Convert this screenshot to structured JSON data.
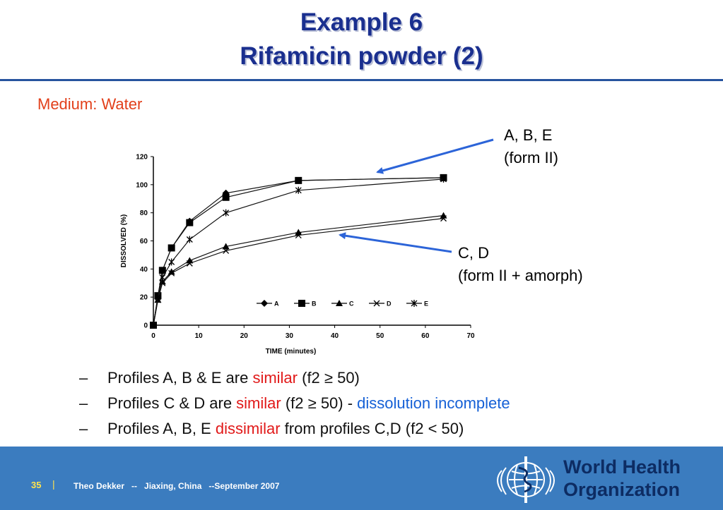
{
  "slide": {
    "title_line1": "Example 6",
    "title_line2": "Rifamicin powder (2)",
    "subtitle": "Medium: Water",
    "callouts": {
      "abe_line1": "A, B, E",
      "abe_line2": "(form II)",
      "cd_line1": "C, D",
      "cd_line2": "(form II + amorph)"
    },
    "bullets": [
      {
        "dash": "–",
        "t1": "Profiles A, B & E are ",
        "t2": "similar",
        "t3": " (f2 ≥ 50)"
      },
      {
        "dash": "–",
        "t1": "Profiles C & D are ",
        "t2": "similar",
        "t3": " (f2 ≥ 50) - ",
        "t4": "dissolution incomplete"
      },
      {
        "dash": "–",
        "t1": "Profiles A, B, E ",
        "t2": "dissimilar",
        "t3": " from profiles C,D (f2 < 50)"
      }
    ],
    "colors": {
      "title": "#1a2f8f",
      "subtitle": "#e2401b",
      "highlight_red": "#e11919",
      "highlight_blue": "#1560d6",
      "arrow": "#2c64d8",
      "footer_bg": "#3b7cbf"
    }
  },
  "footer": {
    "page_number": "35",
    "separator": "|",
    "presenter_text": "Theo Dekker   --   Jiaxing, China   --September 2007",
    "logo_icon": "who-emblem-icon",
    "logo_line1": "World Health",
    "logo_line2": "Organization"
  },
  "chart_data": {
    "type": "line",
    "xlabel": "TIME (minutes)",
    "ylabel": "DISSOLVED (%)",
    "xlim": [
      0,
      70
    ],
    "ylim": [
      0,
      120
    ],
    "xticks": [
      0,
      10,
      20,
      30,
      40,
      50,
      60,
      70
    ],
    "yticks": [
      0,
      20,
      40,
      60,
      80,
      100,
      120
    ],
    "grid": false,
    "legend_position": "bottom-right",
    "series": [
      {
        "name": "A",
        "marker": "diamond",
        "x": [
          0,
          1,
          2,
          4,
          8,
          16,
          32,
          64
        ],
        "values": [
          0,
          20,
          39,
          55,
          74,
          94,
          103,
          105
        ]
      },
      {
        "name": "B",
        "marker": "square",
        "x": [
          0,
          1,
          2,
          4,
          8,
          16,
          32,
          64
        ],
        "values": [
          0,
          21,
          39,
          55,
          73,
          91,
          103,
          105
        ]
      },
      {
        "name": "C",
        "marker": "triangle",
        "x": [
          0,
          1,
          2,
          4,
          8,
          16,
          32,
          64
        ],
        "values": [
          0,
          18,
          31,
          38,
          46,
          56,
          66,
          78
        ]
      },
      {
        "name": "D",
        "marker": "x",
        "x": [
          0,
          1,
          2,
          4,
          8,
          16,
          32,
          64
        ],
        "values": [
          0,
          18,
          30,
          37,
          44,
          53,
          64,
          76
        ]
      },
      {
        "name": "E",
        "marker": "asterisk",
        "x": [
          0,
          1,
          2,
          4,
          8,
          16,
          32,
          64
        ],
        "values": [
          0,
          20,
          34,
          45,
          61,
          80,
          96,
          104
        ]
      }
    ]
  }
}
